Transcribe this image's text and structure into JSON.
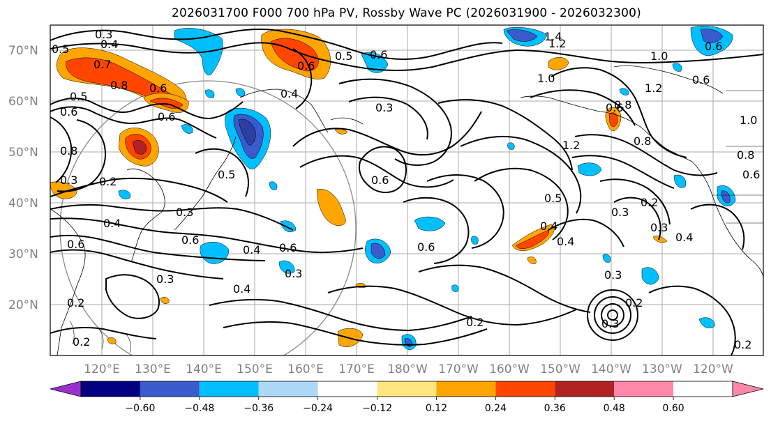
{
  "title": "2026031700 F000 700 hPa PV, Rossby Wave PC (2026031900 - 2026032300)",
  "lat_labels": [
    "70°N",
    "60°N",
    "50°N",
    "40°N",
    "30°N",
    "20°N"
  ],
  "lon_labels": [
    "120°E",
    "130°E",
    "140°E",
    "150°E",
    "160°E",
    "170°E",
    "180°W",
    "170°W",
    "160°W",
    "150°W",
    "140°W",
    "130°W",
    "120°W"
  ],
  "contour_labels": [
    "0.5",
    "0.4",
    "0.3",
    "0.7",
    "0.8",
    "0.6",
    "0.6",
    "0.5",
    "0.6",
    "0.8",
    "0.3",
    "0.2",
    "0.4",
    "0.6",
    "0.3",
    "0.6",
    "0.2",
    "0.2",
    "0.4",
    "0.6",
    "0.3",
    "0.6",
    "0.5",
    "0.3",
    "0.4",
    "0.6",
    "0.6",
    "1.0",
    "0.3",
    "0.4",
    "0.2",
    "0.6",
    "1.4",
    "1.2",
    "1.0",
    "1.2",
    "0.6",
    "0.6",
    "0.8",
    "0.8",
    "1.2",
    "0.5",
    "0.4",
    "0.4",
    "0.3",
    "0.3",
    "0.2",
    "0.4",
    "0.8",
    "0.3",
    "0.2",
    "0.3",
    "0.2",
    "1.0",
    "0.6",
    "0.6",
    "0.5"
  ],
  "colorbar": {
    "ticks": [
      "−0.60",
      "−0.48",
      "−0.36",
      "−0.24",
      "−0.12",
      "0.12",
      "0.24",
      "0.36",
      "0.48",
      "0.60"
    ],
    "colors": [
      "#9932cc",
      "#000080",
      "#3a5bcc",
      "#00bfff",
      "#add8f6",
      "#ffffff",
      "#ffe680",
      "#ffa500",
      "#ff4500",
      "#b22222",
      "#ff88aa"
    ]
  },
  "colors": {
    "pos_light": "#ffe680",
    "pos_mid": "#ffa500",
    "pos_strong": "#ff4500",
    "pos_max": "#b22222",
    "neg_light": "#add8f6",
    "neg_mid": "#00bfff",
    "neg_strong": "#3a5bcc",
    "neg_max": "#000080"
  }
}
